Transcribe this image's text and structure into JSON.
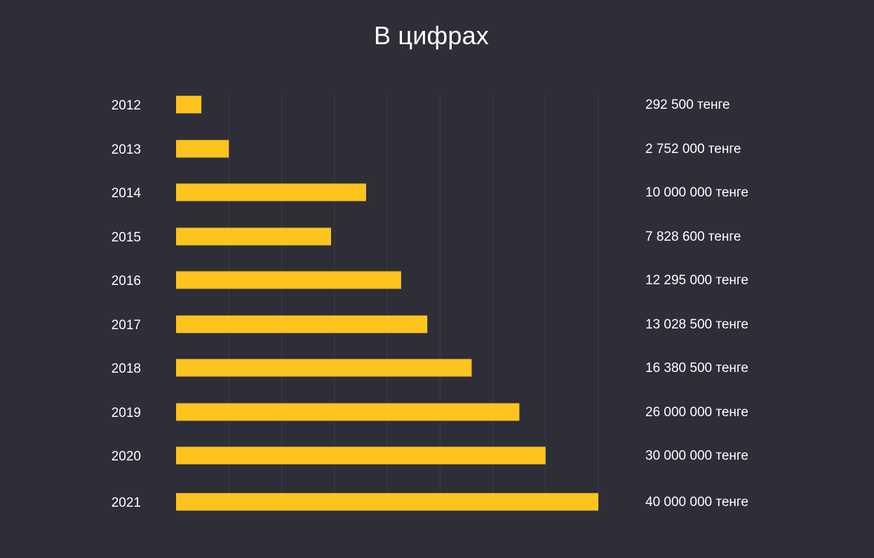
{
  "chart_data": {
    "type": "bar",
    "orientation": "horizontal",
    "title": "В цифрах",
    "xlabel": "",
    "ylabel": "",
    "categories": [
      "2012",
      "2013",
      "2014",
      "2015",
      "2016",
      "2017",
      "2018",
      "2019",
      "2020",
      "2021"
    ],
    "values": [
      292500,
      2752000,
      10000000,
      7828600,
      12295000,
      13028500,
      16380500,
      26000000,
      30000000,
      40000000
    ],
    "value_labels": [
      "292 500 тенге",
      "2 752 000 тенге",
      "10 000 000 тенге",
      "7 828 600 тенге",
      "12 295 000 тенге",
      "13 028 500 тенге",
      "16 380 500 тенге",
      "26 000 000 тенге",
      "30 000 000 тенге",
      "40 000 000 тенге"
    ],
    "bar_relative_lengths": [
      0.06,
      0.125,
      0.45,
      0.367,
      0.533,
      0.595,
      0.7,
      0.813,
      0.875,
      1.0
    ],
    "grid": "vertical",
    "legend": "none",
    "colors": {
      "background": "#2e2e39",
      "bar": "#fec41e",
      "grid": "#3e3e4a",
      "text": "#ffffff"
    }
  }
}
